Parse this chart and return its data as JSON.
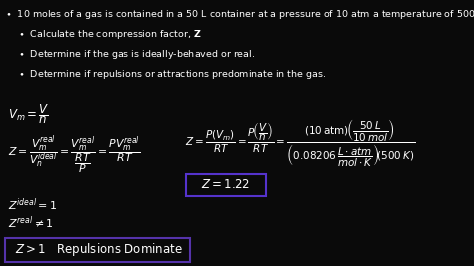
{
  "background_color": "#0a0a0a",
  "text_color": "#ffffff",
  "box_border_color": "#5533aa",
  "result_box_color": "#4433aa",
  "fig_width": 4.74,
  "fig_height": 2.66,
  "dpi": 100
}
